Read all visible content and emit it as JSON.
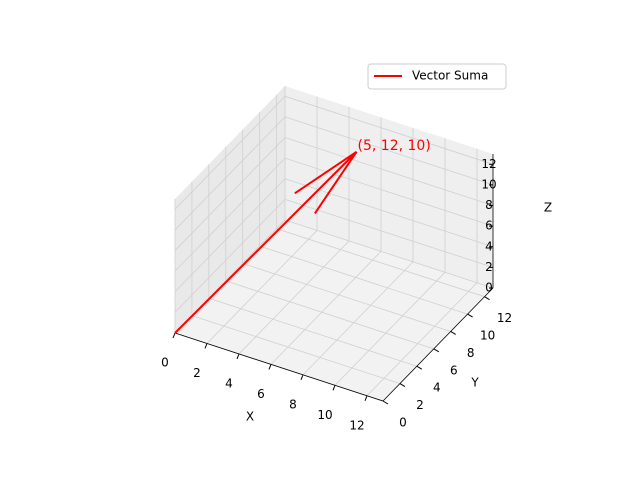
{
  "chart_data": {
    "type": "quiver3d",
    "series": [
      {
        "name": "Vector Suma",
        "color": "#ff0000",
        "origin": [
          0,
          0,
          0
        ],
        "vector": [
          5,
          12,
          10
        ]
      }
    ],
    "annotation": "(5, 12, 10)",
    "xlabel": "X",
    "ylabel": "Y",
    "zlabel": "Z",
    "xlim": [
      0,
      13
    ],
    "ylim": [
      0,
      13
    ],
    "zlim": [
      0,
      13
    ],
    "xticks": [
      0,
      2,
      4,
      6,
      8,
      10,
      12
    ],
    "yticks": [
      0,
      2,
      4,
      6,
      8,
      10,
      12
    ],
    "zticks": [
      0,
      2,
      4,
      6,
      8,
      10,
      12
    ],
    "grid": true,
    "legend": "upper right"
  }
}
